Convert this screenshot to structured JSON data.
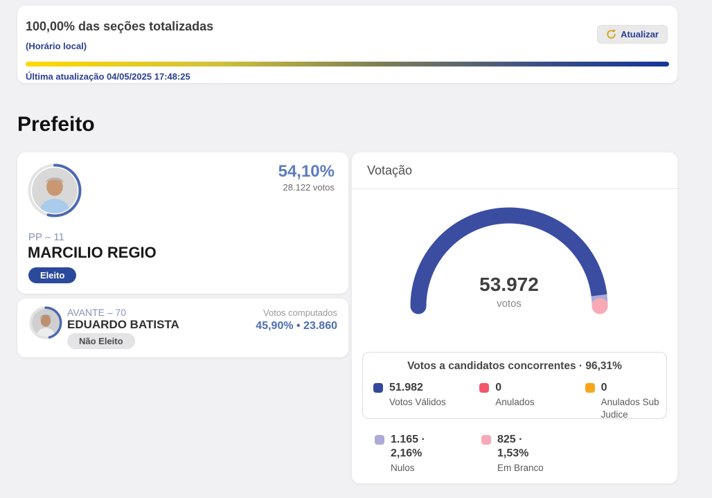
{
  "status": {
    "title": "100,00% das seções totalizadas",
    "subtitle": "(Horário local)",
    "updated": "Última atualização 04/05/2025 17:48:25",
    "refresh_label": "Atualizar",
    "progress_pct": 100,
    "progress_gradient": [
      "#ffd900",
      "#16349b"
    ],
    "accent_blue": "#2b3f94"
  },
  "page": {
    "title": "Prefeito"
  },
  "candidates": [
    {
      "party": "PP – 11",
      "name": "MARCILIO REGIO",
      "status_badge": "Eleito",
      "pct": "54,10%",
      "votes": "28.122 votos",
      "ring_pct": 54.1,
      "badge_color": "#2b4a9b"
    },
    {
      "party": "AVANTE – 70",
      "name": "EDUARDO BATISTA",
      "status_badge": "Não Eleito",
      "computed_label": "Votos computados",
      "result": "45,90% • 23.860",
      "ring_pct": 45.9,
      "badge_color": "#e4e4e6"
    }
  ],
  "votacao": {
    "header": "Votação",
    "total": "53.972",
    "total_label": "votos",
    "legend_title": "Votos a candidatos concorrentes · 96,31%",
    "legend_primary": [
      {
        "value": "51.982",
        "label": "Votos Válidos",
        "color": "#33489b"
      },
      {
        "value": "0",
        "label": "Anulados",
        "color": "#f4556b"
      },
      {
        "value": "0",
        "label": "Anulados Sub Judice",
        "color": "#f9a51a"
      }
    ],
    "legend_secondary": [
      {
        "value": "1.165 · 2,16%",
        "label": "Nulos",
        "color": "#abaad8"
      },
      {
        "value": "825 · 1,53%",
        "label": "Em Branco",
        "color": "#f8a9b6"
      }
    ]
  },
  "chart_data": {
    "type": "pie",
    "variant": "half-donut-gauge",
    "title": "Votação",
    "center_value": "53.972",
    "center_label": "votos",
    "annotation": "Votos a candidatos concorrentes · 96,31%",
    "series": [
      {
        "name": "Votos Válidos",
        "value": 51982,
        "pct": 96.31,
        "color": "#3b4da1"
      },
      {
        "name": "Anulados",
        "value": 0,
        "pct": 0,
        "color": "#f4556b"
      },
      {
        "name": "Anulados Sub Judice",
        "value": 0,
        "pct": 0,
        "color": "#f9a51a"
      },
      {
        "name": "Nulos",
        "value": 1165,
        "pct": 2.16,
        "color": "#abaad8"
      },
      {
        "name": "Em Branco",
        "value": 825,
        "pct": 1.53,
        "color": "#f8a9b6"
      }
    ],
    "legend_position": "below-center"
  }
}
